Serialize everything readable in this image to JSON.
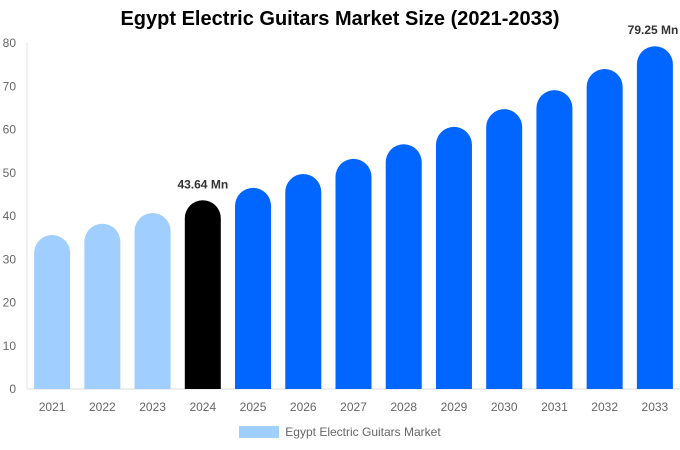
{
  "chart_data": {
    "type": "bar",
    "title": "Egypt Electric Guitars Market Size (2021-2033)",
    "categories": [
      "2021",
      "2022",
      "2023",
      "2024",
      "2025",
      "2026",
      "2027",
      "2028",
      "2029",
      "2030",
      "2031",
      "2032",
      "2033"
    ],
    "series": [
      {
        "name": "Egypt Electric Guitars Market",
        "values": [
          35.6,
          38.2,
          40.7,
          43.64,
          46.5,
          49.7,
          53.2,
          56.6,
          60.6,
          64.7,
          69.1,
          74.0,
          79.25
        ]
      }
    ],
    "data_labels": {
      "3": "43.64 Mn",
      "12": "79.25 Mn"
    },
    "yticks": [
      0,
      10,
      20,
      30,
      40,
      50,
      60,
      70,
      80
    ],
    "ylim": [
      0,
      80
    ],
    "xlabel": "",
    "ylabel": "",
    "grid": false,
    "legend": "bottom",
    "colors": {
      "historic": "#a0cfff",
      "current": "#000000",
      "forecast": "#0066ff"
    }
  }
}
